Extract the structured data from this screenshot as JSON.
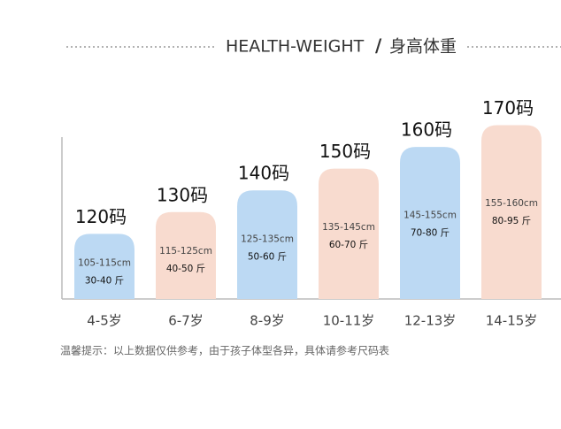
{
  "chart_data": {
    "type": "bar",
    "title": "HEALTH-WEIGHT",
    "title_cn": "身高体重",
    "categories": [
      "4-5岁",
      "6-7岁",
      "8-9岁",
      "10-11岁",
      "12-13岁",
      "14-15岁"
    ],
    "values": [
      120,
      130,
      140,
      150,
      160,
      170
    ],
    "value_labels": [
      "120码",
      "130码",
      "140码",
      "150码",
      "160码",
      "170码"
    ],
    "heights": [
      "105-115cm",
      "115-125cm",
      "125-135cm",
      "135-145cm",
      "145-155cm",
      "155-160cm"
    ],
    "weights": [
      "30-40 斤",
      "40-50 斤",
      "50-60 斤",
      "60-70 斤",
      "70-80 斤",
      "80-95 斤"
    ],
    "colors": [
      "#bcd9f3",
      "#f8dbcf",
      "#bcd9f3",
      "#f8dbcf",
      "#bcd9f3",
      "#f8dbcf"
    ],
    "ylim": [
      90,
      180
    ],
    "note": "温馨提示：以上数据仅供参考，由于孩子体型各异，具体请参考尺码表"
  }
}
